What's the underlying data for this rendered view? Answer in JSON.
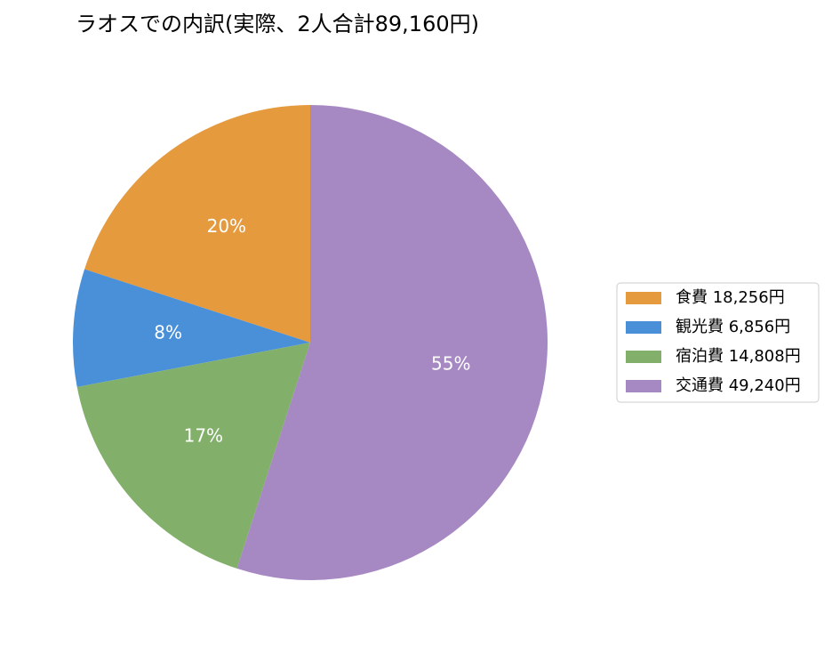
{
  "chart_data": {
    "type": "pie",
    "title": "ラオスでの内訳(実際、2人合計89,160円)",
    "categories": [
      "食費 18,256円",
      "観光費 6,856円",
      "宿泊費 14,808円",
      "交通費 49,240円"
    ],
    "values": [
      20,
      8,
      17,
      55
    ],
    "value_labels": [
      "20%",
      "8%",
      "17%",
      "55%"
    ],
    "colors": [
      "#e59a3e",
      "#4a90d9",
      "#82b06a",
      "#a688c3"
    ],
    "legend": "right"
  }
}
